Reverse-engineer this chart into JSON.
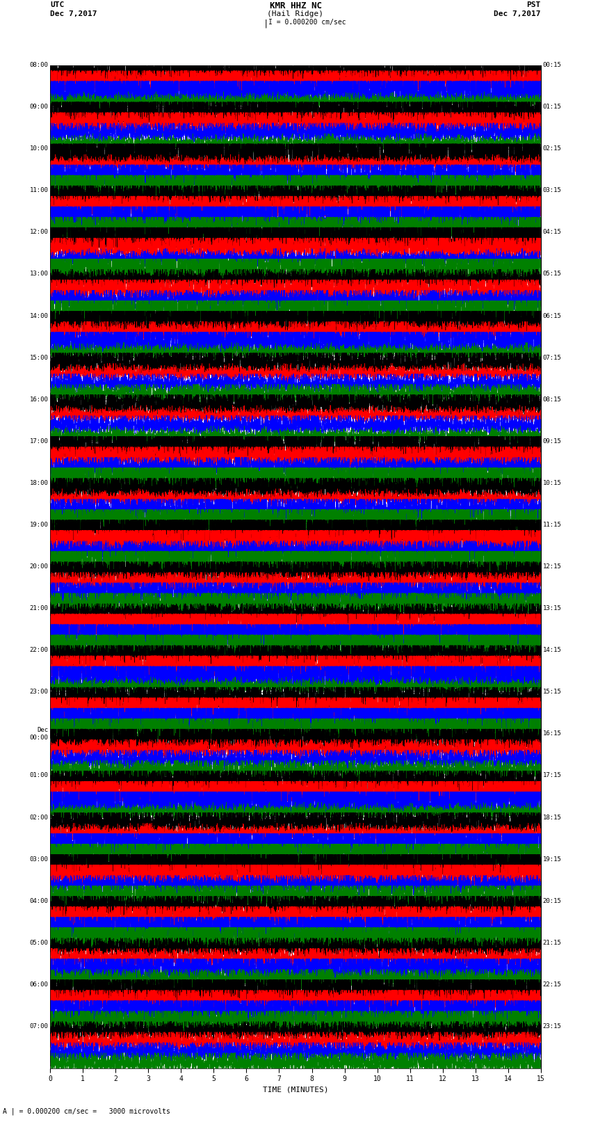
{
  "title_line1": "KMR HHZ NC",
  "title_line2": "(Hail Ridge)",
  "scale_label": "I = 0.000200 cm/sec",
  "bottom_label": "A | = 0.000200 cm/sec =   3000 microvolts",
  "left_header": "UTC",
  "left_date": "Dec 7,2017",
  "right_header": "PST",
  "right_date": "Dec 7,2017",
  "xlabel": "TIME (MINUTES)",
  "left_times": [
    "08:00",
    "09:00",
    "10:00",
    "11:00",
    "12:00",
    "13:00",
    "14:00",
    "15:00",
    "16:00",
    "17:00",
    "18:00",
    "19:00",
    "20:00",
    "21:00",
    "22:00",
    "23:00",
    "Dec\n00:00",
    "01:00",
    "02:00",
    "03:00",
    "04:00",
    "05:00",
    "06:00",
    "07:00"
  ],
  "right_times": [
    "00:15",
    "01:15",
    "02:15",
    "03:15",
    "04:15",
    "05:15",
    "06:15",
    "07:15",
    "08:15",
    "09:15",
    "10:15",
    "11:15",
    "12:15",
    "13:15",
    "14:15",
    "15:15",
    "16:15",
    "17:15",
    "18:15",
    "19:15",
    "20:15",
    "21:15",
    "22:15",
    "23:15"
  ],
  "n_rows": 24,
  "traces_per_row": 4,
  "colors": [
    "black",
    "red",
    "blue",
    "green"
  ],
  "minutes_per_row": 15,
  "xlim": [
    0,
    15
  ],
  "xticks": [
    0,
    1,
    2,
    3,
    4,
    5,
    6,
    7,
    8,
    9,
    10,
    11,
    12,
    13,
    14,
    15
  ],
  "fig_width": 8.5,
  "fig_height": 16.13,
  "dpi": 100,
  "bg_color": "white",
  "trace_linewidth": 0.35
}
